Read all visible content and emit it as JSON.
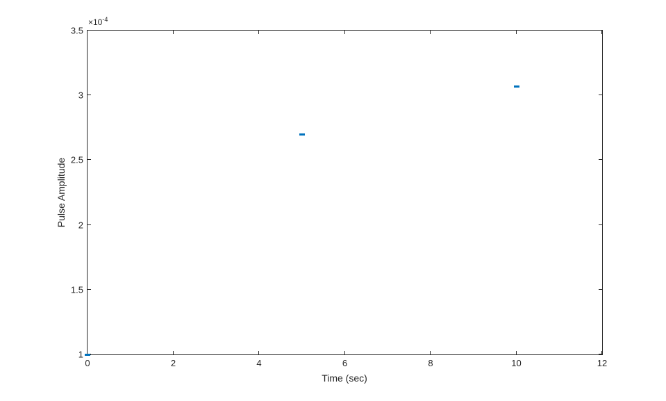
{
  "chart_data": {
    "type": "scatter",
    "title": "",
    "xlabel": "Time (sec)",
    "ylabel": "Pulse Amplitude",
    "xlim": [
      0,
      12
    ],
    "ylim_scaled": [
      1,
      3.5
    ],
    "y_scale_factor": "1e-4",
    "y_exponent": {
      "prefix": "×10",
      "exponent": "-4"
    },
    "x_ticks": [
      0,
      2,
      4,
      6,
      8,
      10,
      12
    ],
    "y_ticks": [
      1,
      1.5,
      2,
      2.5,
      3,
      3.5
    ],
    "grid": false,
    "legend": null,
    "box": true,
    "marker_style": "horizontal-dash",
    "axis_color": "#262626",
    "background_color": "#ffffff",
    "series": [
      {
        "name": "pulse-amplitude",
        "color": "#0072BD",
        "points_scaled": [
          {
            "x": 0,
            "y": 1.0
          },
          {
            "x": 5,
            "y": 2.7
          },
          {
            "x": 10,
            "y": 3.07
          }
        ],
        "points_actual": [
          {
            "x": 0,
            "y": 0.0001
          },
          {
            "x": 5,
            "y": 0.00027
          },
          {
            "x": 10,
            "y": 0.000307
          }
        ]
      }
    ]
  }
}
